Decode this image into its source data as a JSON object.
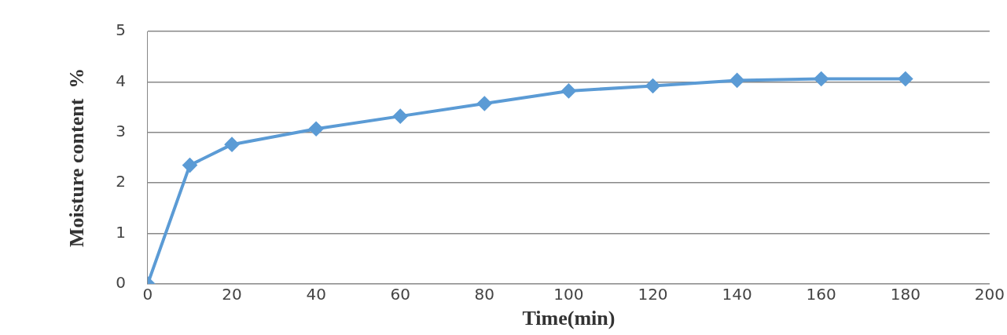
{
  "chart_data": {
    "type": "line",
    "xlabel": "Time(min)",
    "ylabel": "Moisture content  %",
    "x": [
      0,
      10,
      20,
      40,
      60,
      80,
      100,
      120,
      140,
      160,
      180
    ],
    "series": [
      {
        "color": "#5b9bd5",
        "values": [
          0,
          2.35,
          2.76,
          3.07,
          3.32,
          3.57,
          3.82,
          3.92,
          4.03,
          4.06,
          4.06
        ]
      }
    ],
    "xlim": [
      0,
      200
    ],
    "xticks": [
      0,
      20,
      40,
      60,
      80,
      100,
      120,
      140,
      160,
      180,
      200
    ],
    "ylim": [
      0,
      5
    ],
    "yticks": [
      0,
      1,
      2,
      3,
      4,
      5
    ],
    "grid": "y",
    "legend": false,
    "marker": "diamond",
    "line_style": "solid"
  }
}
